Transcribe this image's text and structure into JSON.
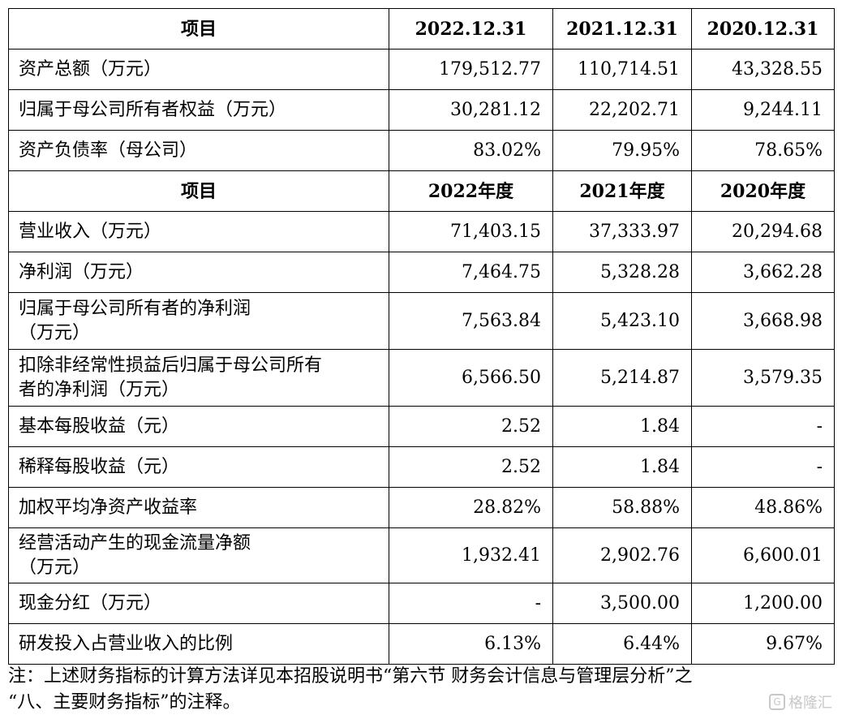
{
  "table": {
    "balance_header": [
      "项目",
      "2022.12.31",
      "2021.12.31",
      "2020.12.31"
    ],
    "balance_rows": [
      {
        "label": "资产总额（万元）",
        "values": [
          "179,512.77",
          "110,714.51",
          "43,328.55"
        ]
      },
      {
        "label": "归属于母公司所有者权益（万元）",
        "values": [
          "30,281.12",
          "22,202.71",
          "9,244.11"
        ]
      },
      {
        "label": "资产负债率（母公司）",
        "values": [
          "83.02%",
          "79.95%",
          "78.65%"
        ]
      }
    ],
    "income_header": [
      "项目",
      "2022年度",
      "2021年度",
      "2020年度"
    ],
    "income_rows": [
      {
        "label": "营业收入（万元）",
        "values": [
          "71,403.15",
          "37,333.97",
          "20,294.68"
        ]
      },
      {
        "label": "净利润（万元）",
        "values": [
          "7,464.75",
          "5,328.28",
          "3,662.28"
        ]
      },
      {
        "label_lines": [
          "归属于母公司所有者的净利润",
          "（万元）"
        ],
        "values": [
          "7,563.84",
          "5,423.10",
          "3,668.98"
        ]
      },
      {
        "label_lines": [
          "扣除非经常性损益后归属于母公司所有",
          "者的净利润（万元）"
        ],
        "values": [
          "6,566.50",
          "5,214.87",
          "3,579.35"
        ]
      },
      {
        "label": "基本每股收益（元）",
        "values": [
          "2.52",
          "1.84",
          "-"
        ]
      },
      {
        "label": "稀释每股收益（元）",
        "values": [
          "2.52",
          "1.84",
          "-"
        ]
      },
      {
        "label": "加权平均净资产收益率",
        "values": [
          "28.82%",
          "58.88%",
          "48.86%"
        ]
      },
      {
        "label_lines": [
          "经营活动产生的现金流量净额",
          "（万元）"
        ],
        "values": [
          "1,932.41",
          "2,902.76",
          "6,600.01"
        ]
      },
      {
        "label": "现金分红（万元）",
        "values": [
          "-",
          "3,500.00",
          "1,200.00"
        ]
      },
      {
        "label": "研发投入占营业收入的比例",
        "values": [
          "6.13%",
          "6.44%",
          "9.67%"
        ]
      }
    ]
  },
  "note": {
    "line1": "注：上述财务指标的计算方法详见本招股说明书“第六节 财务会计信息与管理层分析”之",
    "line2": "“八、主要财务指标”的注释。"
  },
  "watermark": {
    "icon_glyph": "G",
    "text": "格隆汇"
  }
}
